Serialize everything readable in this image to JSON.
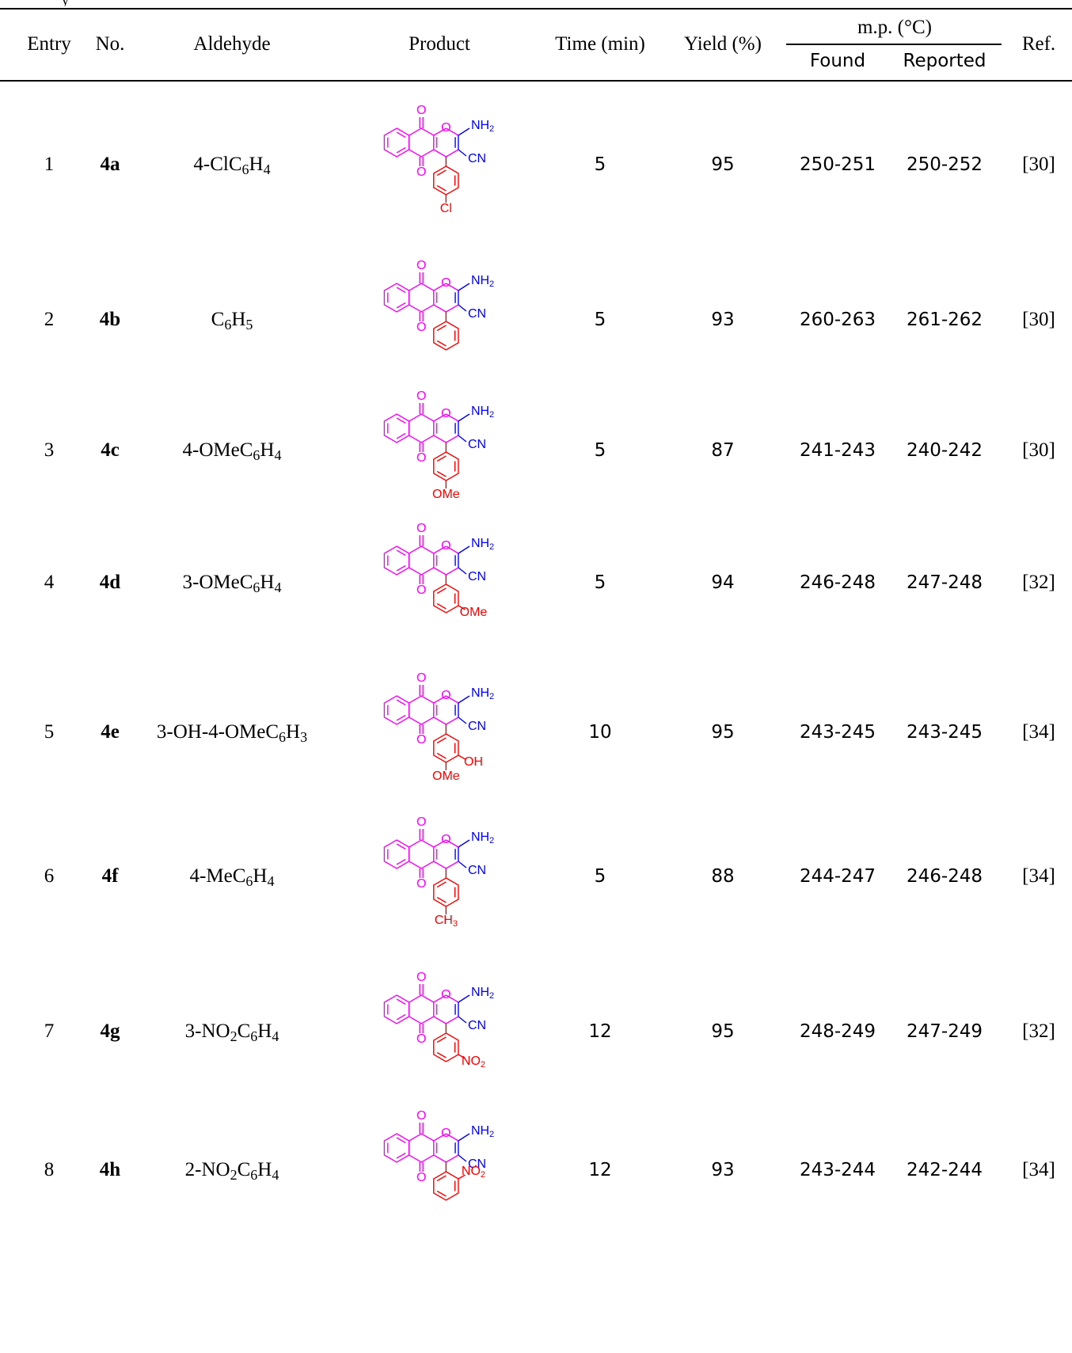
{
  "caption": "y",
  "headers": {
    "entry": "Entry",
    "no": "No.",
    "aldehyde": "Aldehyde",
    "product": "Product",
    "time": "Time (min)",
    "yield": "Yield (%)",
    "mp": "m.p. (°C)",
    "found": "Found",
    "reported": "Reported",
    "ref": "Ref."
  },
  "product_labels": {
    "o": "O",
    "nh2": "NH",
    "nh2_sub": "2",
    "cn": "CN"
  },
  "colors": {
    "core": "#ff00ff",
    "nitrile": "#0000ff",
    "substituent": "#ff0000",
    "text": "#000000"
  },
  "rows": [
    {
      "entry": "1",
      "no": "4a",
      "ald": [
        [
          "4-ClC",
          false
        ],
        [
          "6",
          true
        ],
        [
          "H",
          false
        ],
        [
          "4",
          true
        ]
      ],
      "time": "5",
      "yield": "95",
      "found": "250-251",
      "reported": "250-252",
      "ref": "[30]",
      "sub": "4-Cl"
    },
    {
      "entry": "2",
      "no": "4b",
      "ald": [
        [
          "C",
          false
        ],
        [
          "6",
          true
        ],
        [
          "H",
          false
        ],
        [
          "5",
          true
        ]
      ],
      "time": "5",
      "yield": "93",
      "found": "260-263",
      "reported": "261-262",
      "ref": "[30]",
      "sub": "H"
    },
    {
      "entry": "3",
      "no": "4c",
      "ald": [
        [
          "4-OMeC",
          false
        ],
        [
          "6",
          true
        ],
        [
          "H",
          false
        ],
        [
          "4",
          true
        ]
      ],
      "time": "5",
      "yield": "87",
      "found": "241-243",
      "reported": "240-242",
      "ref": "[30]",
      "sub": "4-OMe"
    },
    {
      "entry": "4",
      "no": "4d",
      "ald": [
        [
          "3-OMeC",
          false
        ],
        [
          "6",
          true
        ],
        [
          "H",
          false
        ],
        [
          "4",
          true
        ]
      ],
      "time": "5",
      "yield": "94",
      "found": "246-248",
      "reported": "247-248",
      "ref": "[32]",
      "sub": "3-OMe"
    },
    {
      "entry": "5",
      "no": "4e",
      "ald": [
        [
          "3-OH-4-OMeC",
          false
        ],
        [
          "6",
          true
        ],
        [
          "H",
          false
        ],
        [
          "3",
          true
        ]
      ],
      "time": "10",
      "yield": "95",
      "found": "243-245",
      "reported": "243-245",
      "ref": "[34]",
      "sub": "3-OH-4-OMe"
    },
    {
      "entry": "6",
      "no": "4f",
      "ald": [
        [
          "4-MeC",
          false
        ],
        [
          "6",
          true
        ],
        [
          "H",
          false
        ],
        [
          "4",
          true
        ]
      ],
      "time": "5",
      "yield": "88",
      "found": "244-247",
      "reported": "246-248",
      "ref": "[34]",
      "sub": "4-CH3"
    },
    {
      "entry": "7",
      "no": "4g",
      "ald": [
        [
          "3-NO",
          false
        ],
        [
          "2",
          true
        ],
        [
          "C",
          false
        ],
        [
          "6",
          true
        ],
        [
          "H",
          false
        ],
        [
          "4",
          true
        ]
      ],
      "time": "12",
      "yield": "95",
      "found": "248-249",
      "reported": "247-249",
      "ref": "[32]",
      "sub": "3-NO2"
    },
    {
      "entry": "8",
      "no": "4h",
      "ald": [
        [
          "2-NO",
          false
        ],
        [
          "2",
          true
        ],
        [
          "C",
          false
        ],
        [
          "6",
          true
        ],
        [
          "H",
          false
        ],
        [
          "4",
          true
        ]
      ],
      "time": "12",
      "yield": "93",
      "found": "243-244",
      "reported": "242-244",
      "ref": "[34]",
      "sub": "2-NO2"
    }
  ],
  "substituent_labels": {
    "4-Cl": [
      {
        "pos": "p",
        "text": "Cl"
      }
    ],
    "H": [],
    "4-OMe": [
      {
        "pos": "p",
        "text": "OMe"
      }
    ],
    "3-OMe": [
      {
        "pos": "m",
        "text": "OMe"
      }
    ],
    "3-OH-4-OMe": [
      {
        "pos": "m",
        "text": "OH"
      },
      {
        "pos": "p",
        "text": "OMe"
      }
    ],
    "4-CH3": [
      {
        "pos": "p",
        "text": "CH",
        "sub": "3"
      }
    ],
    "3-NO2": [
      {
        "pos": "m",
        "text": "NO",
        "sub": "2"
      }
    ],
    "2-NO2": [
      {
        "pos": "o",
        "text": "NO",
        "sub": "2"
      }
    ]
  }
}
